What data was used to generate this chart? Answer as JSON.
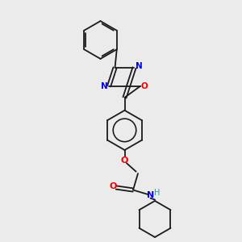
{
  "background_color": "#ebebeb",
  "bond_color": "#1a1a1a",
  "atom_colors": {
    "N": "#0000ee",
    "O": "#ee0000",
    "H": "#4a9090",
    "C": "#1a1a1a"
  },
  "lw": 1.3,
  "fig_size": [
    3.0,
    3.0
  ],
  "dpi": 100
}
